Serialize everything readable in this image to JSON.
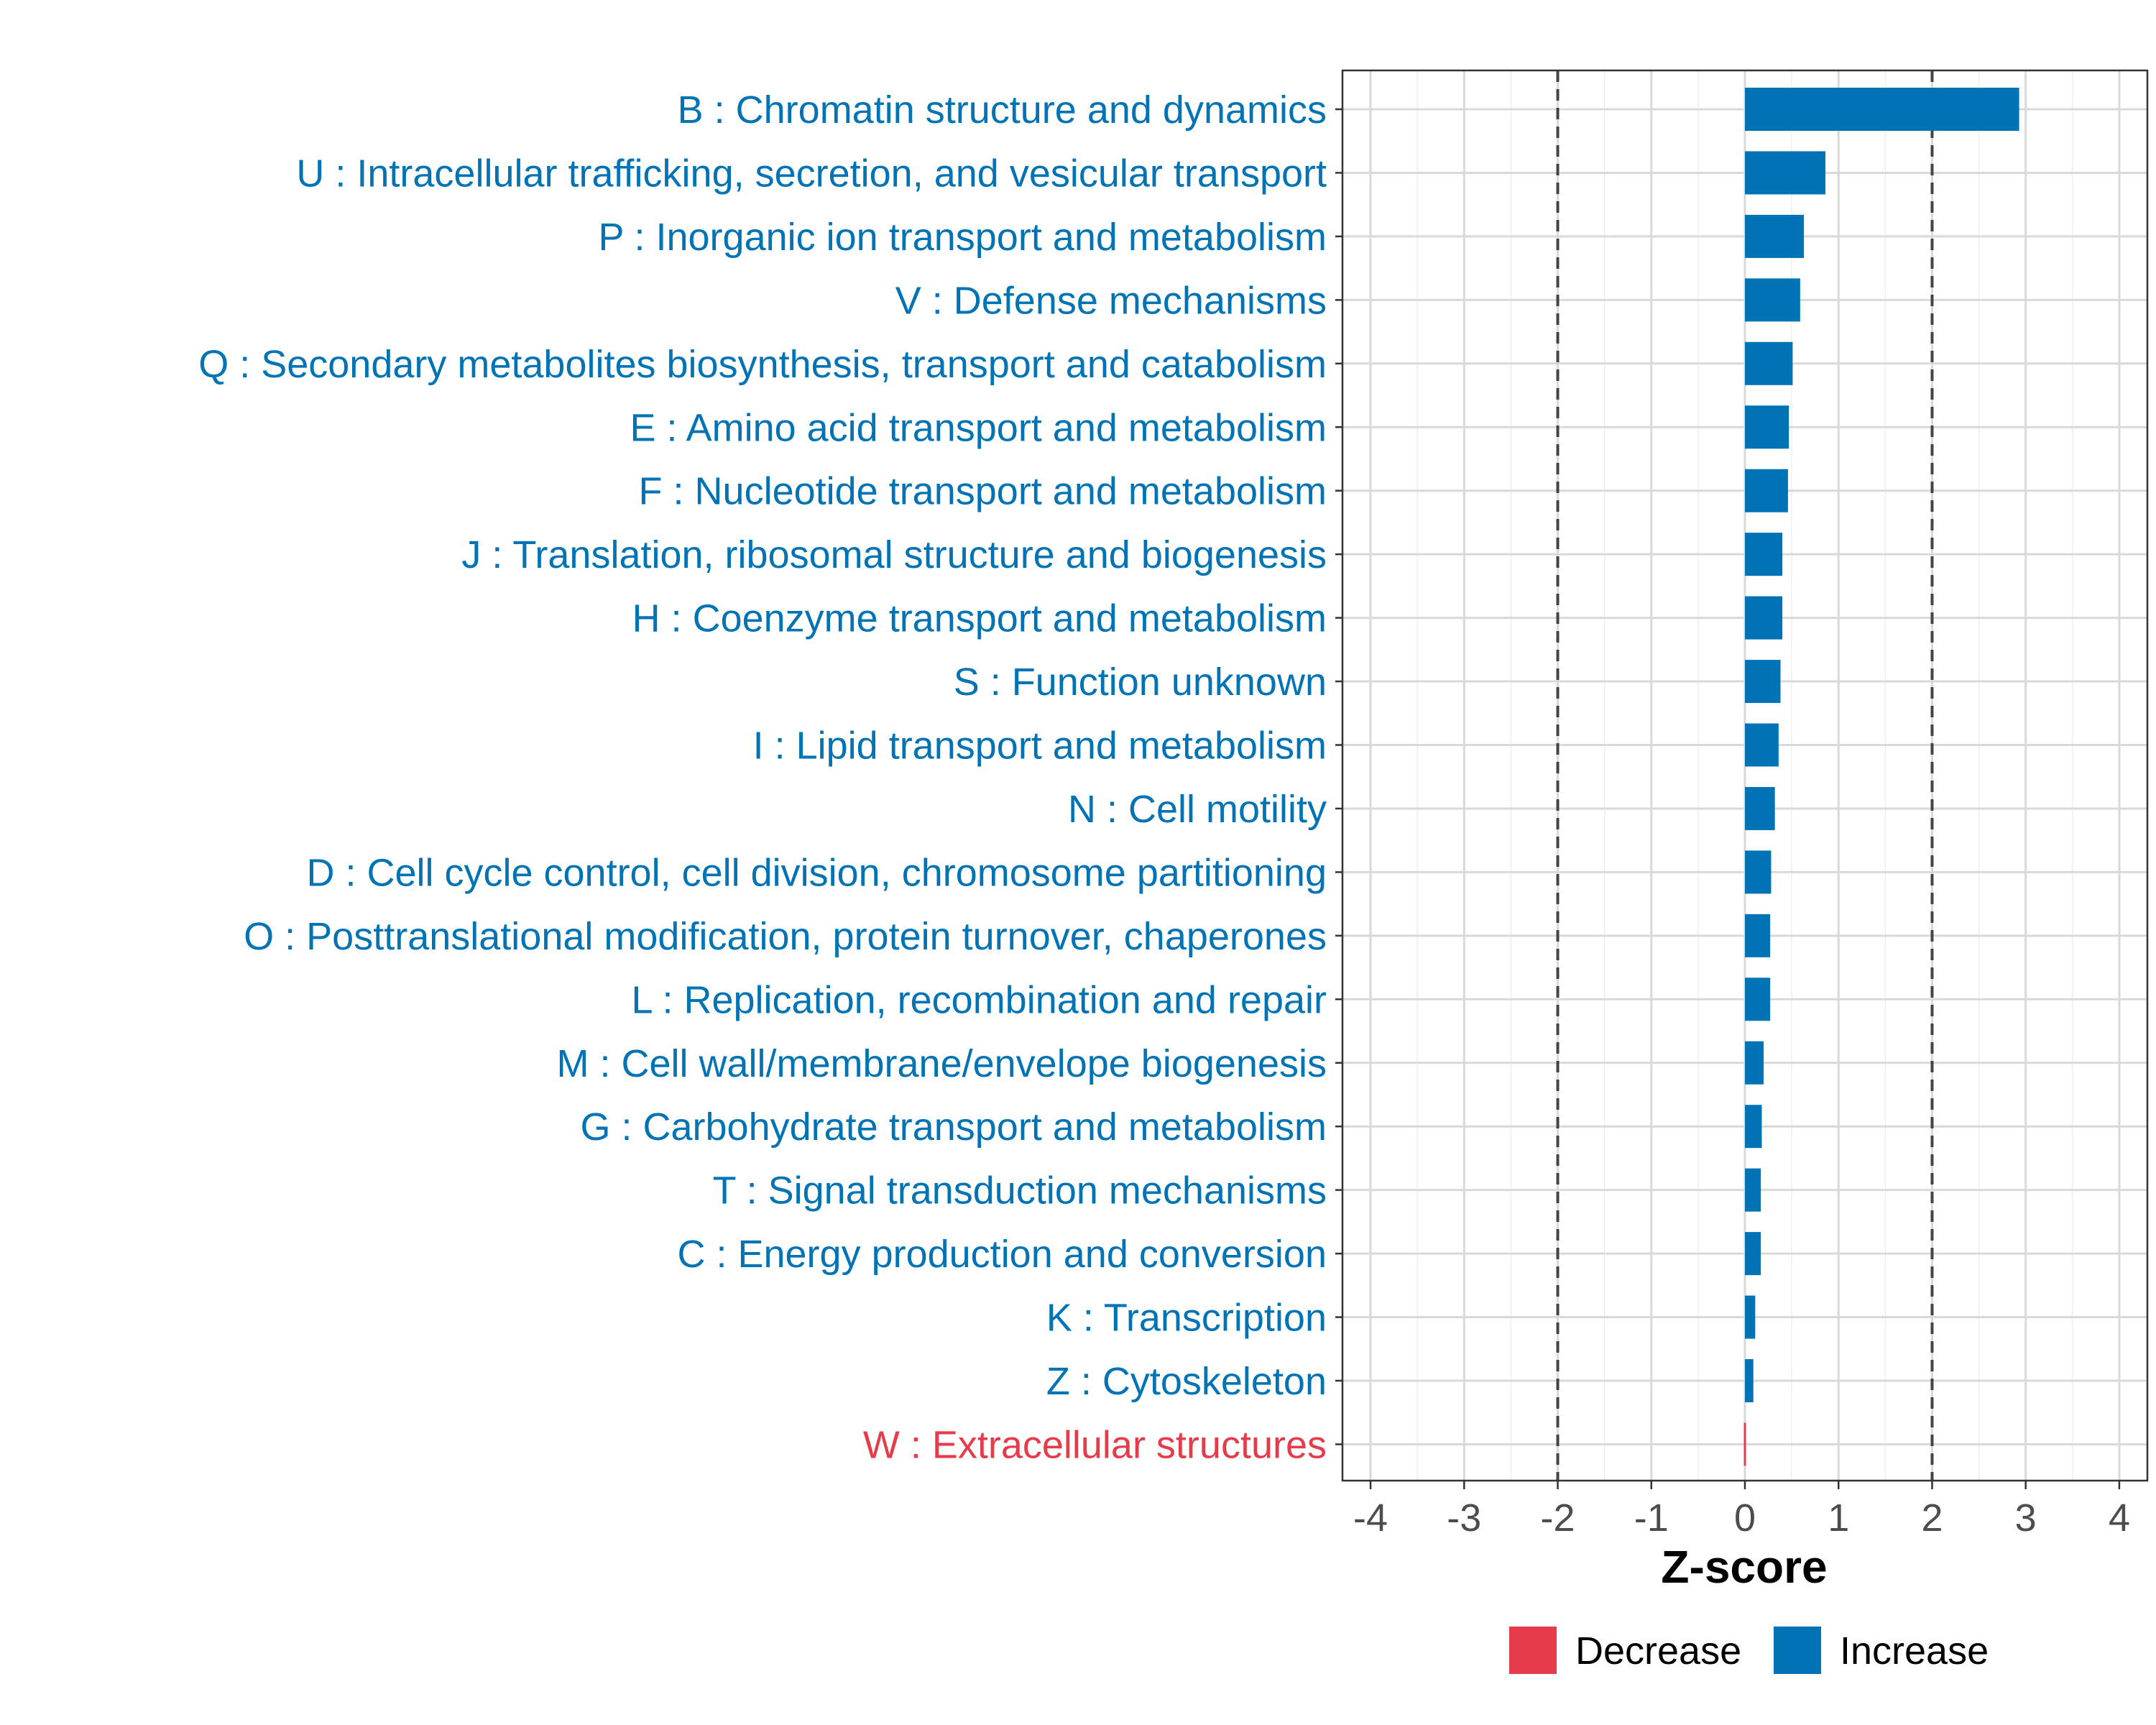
{
  "chart_data": {
    "type": "bar",
    "orientation": "horizontal",
    "xlabel": "Z-score",
    "xlim": [
      -4.3,
      4.3
    ],
    "xticks": [
      -4,
      -3,
      -2,
      -1,
      0,
      1,
      2,
      3,
      4
    ],
    "xtick_labels": [
      "-4",
      "-3",
      "-2",
      "-1",
      "0",
      "1",
      "2",
      "3",
      "4"
    ],
    "threshold_lines": [
      -2,
      2
    ],
    "grid": true,
    "legend_position": "bottom",
    "categories": [
      "B : Chromatin structure and dynamics",
      "U : Intracellular trafficking, secretion, and vesicular transport",
      "P : Inorganic ion transport and metabolism",
      "V : Defense mechanisms",
      "Q : Secondary metabolites biosynthesis, transport and catabolism",
      "E : Amino acid transport and metabolism",
      "F : Nucleotide transport and metabolism",
      "J : Translation, ribosomal structure and biogenesis",
      "H : Coenzyme transport and metabolism",
      "S : Function unknown",
      "I : Lipid transport and metabolism",
      "N : Cell motility",
      "D : Cell cycle control, cell division, chromosome partitioning",
      "O : Posttranslational modification, protein turnover, chaperones",
      "L : Replication, recombination and repair",
      "M : Cell wall/membrane/envelope biogenesis",
      "G : Carbohydrate transport and metabolism",
      "T : Signal transduction mechanisms",
      "C : Energy production and conversion",
      "K : Transcription",
      "Z : Cytoskeleton",
      "W : Extracellular structures"
    ],
    "values": [
      2.93,
      0.86,
      0.63,
      0.59,
      0.51,
      0.47,
      0.46,
      0.4,
      0.4,
      0.38,
      0.36,
      0.32,
      0.28,
      0.27,
      0.27,
      0.2,
      0.18,
      0.17,
      0.17,
      0.11,
      0.09,
      -0.02
    ],
    "direction": [
      "Increase",
      "Increase",
      "Increase",
      "Increase",
      "Increase",
      "Increase",
      "Increase",
      "Increase",
      "Increase",
      "Increase",
      "Increase",
      "Increase",
      "Increase",
      "Increase",
      "Increase",
      "Increase",
      "Increase",
      "Increase",
      "Increase",
      "Increase",
      "Increase",
      "Decrease"
    ],
    "legend": [
      {
        "label": "Decrease",
        "color": "#e63b4a"
      },
      {
        "label": "Increase",
        "color": "#0073b5"
      }
    ]
  }
}
